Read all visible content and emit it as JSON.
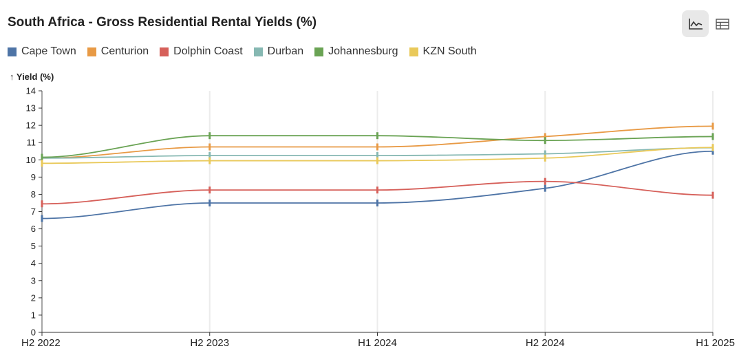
{
  "header": {
    "title": "South Africa - Gross Residential Rental Yields (%)",
    "chart_view_icon": "line-chart-icon",
    "table_view_icon": "table-icon"
  },
  "chart_data": {
    "type": "line",
    "title": "South Africa - Gross Residential Rental Yields (%)",
    "ylabel": "↑ Yield (%)",
    "xlabel": "",
    "ylim": [
      0,
      14
    ],
    "yticks": [
      "0",
      "1",
      "2",
      "3",
      "4",
      "5",
      "6",
      "7",
      "8",
      "9",
      "10",
      "11",
      "12",
      "13",
      "14"
    ],
    "categories": [
      "H2 2022",
      "H2 2023",
      "H1 2024",
      "H2 2024",
      "H1 2025"
    ],
    "legend": "top-left",
    "grid": "vertical",
    "series": [
      {
        "name": "Cape Town",
        "color": "#4e74a6",
        "values": [
          6.6,
          7.5,
          7.5,
          8.35,
          10.5
        ]
      },
      {
        "name": "Centurion",
        "color": "#e89a45",
        "values": [
          10.1,
          10.75,
          10.75,
          11.35,
          11.95
        ]
      },
      {
        "name": "Dolphin Coast",
        "color": "#d6605a",
        "values": [
          7.45,
          8.25,
          8.25,
          8.75,
          7.95
        ]
      },
      {
        "name": "Durban",
        "color": "#86b8b2",
        "values": [
          10.1,
          10.25,
          10.25,
          10.35,
          10.7
        ]
      },
      {
        "name": "Johannesburg",
        "color": "#6aa354",
        "values": [
          10.15,
          11.4,
          11.4,
          11.12,
          11.35
        ]
      },
      {
        "name": "KZN South",
        "color": "#e9c95a",
        "values": [
          9.8,
          9.95,
          9.95,
          10.1,
          10.72
        ]
      }
    ]
  }
}
